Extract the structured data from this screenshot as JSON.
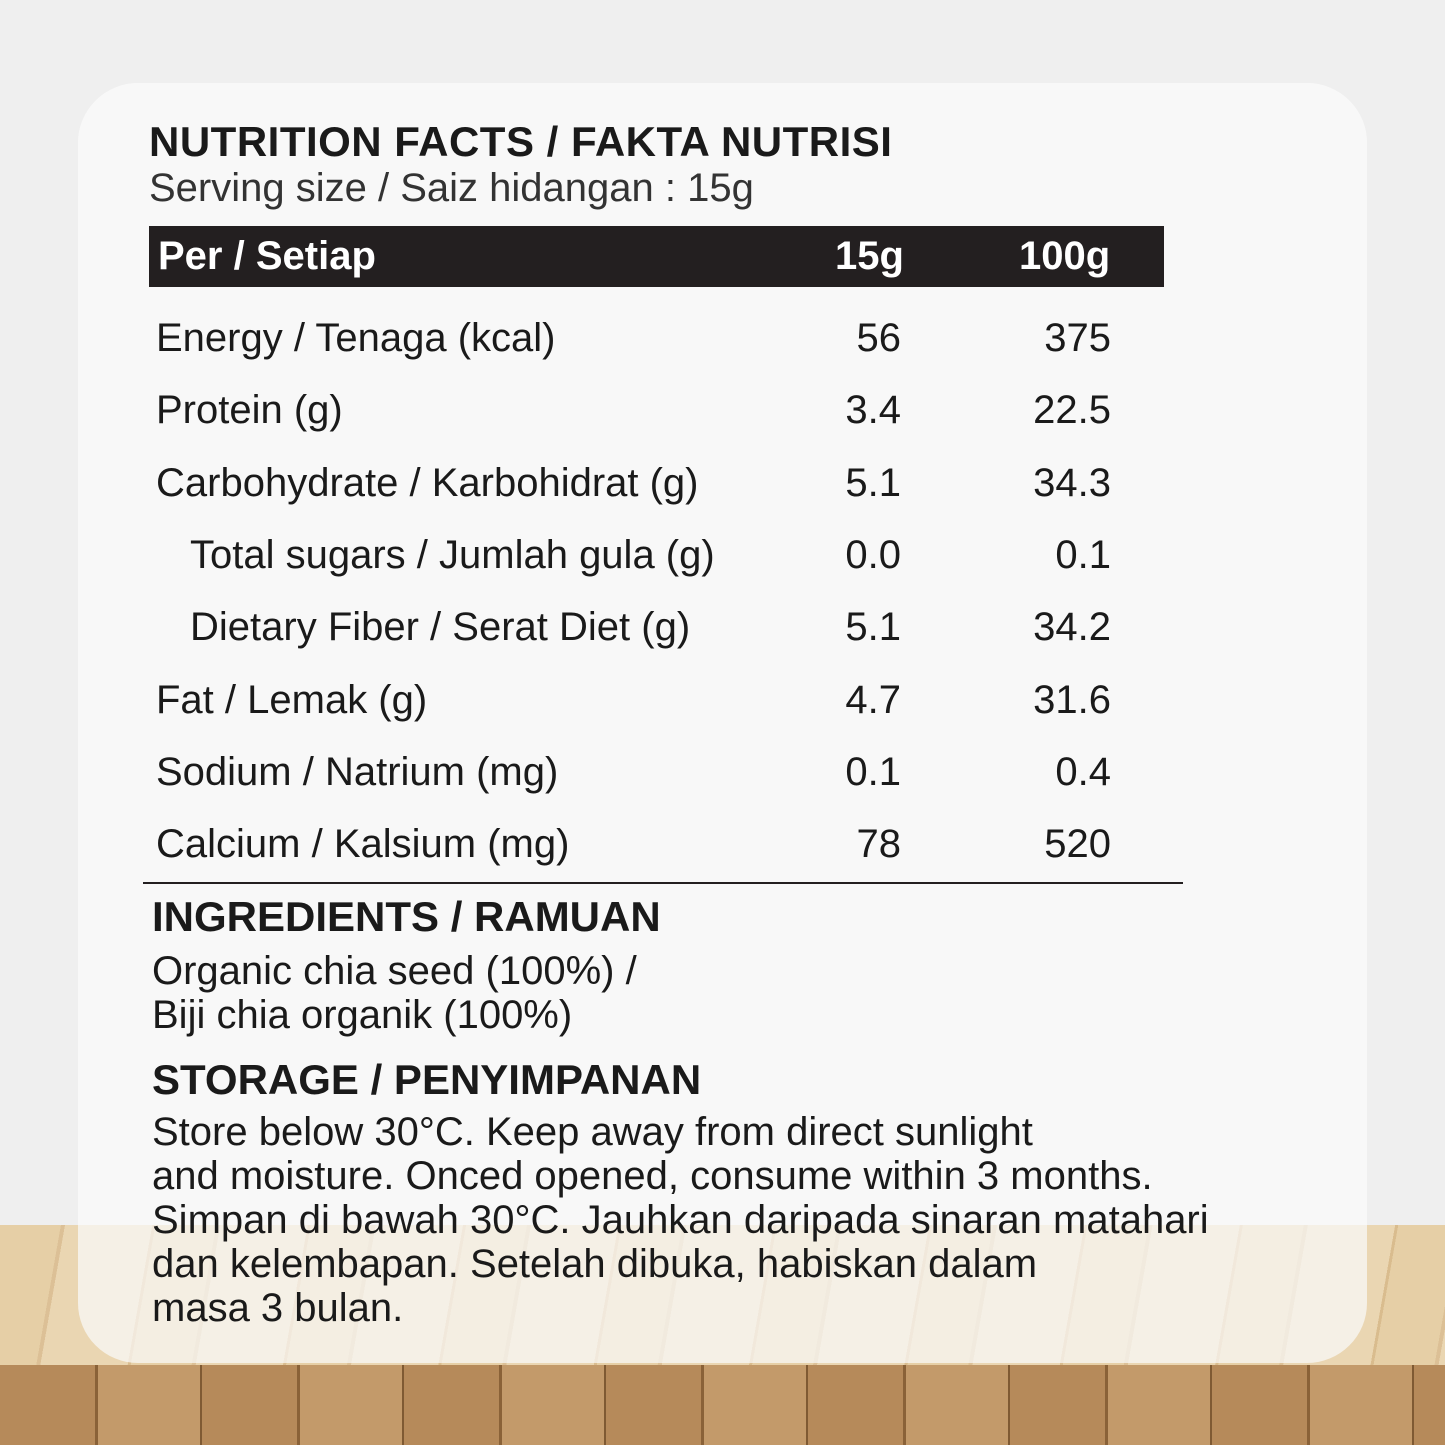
{
  "title": "NUTRITION FACTS / FAKTA NUTRISI",
  "serving": "Serving size / Saiz hidangan : 15g",
  "header": {
    "label": "Per / Setiap",
    "col1": "15g",
    "col2": "100g"
  },
  "rows": [
    {
      "label": "Energy / Tenaga (kcal)",
      "v15": "56",
      "v100": "375"
    },
    {
      "label": "Protein (g)",
      "v15": "3.4",
      "v100": "22.5"
    },
    {
      "label": "Carbohydrate / Karbohidrat (g)",
      "v15": "5.1",
      "v100": "34.3"
    },
    {
      "label": "Total sugars / Jumlah gula (g)",
      "v15": "0.0",
      "v100": "0.1"
    },
    {
      "label": "Dietary Fiber / Serat Diet (g)",
      "v15": "5.1",
      "v100": "34.2"
    },
    {
      "label": "Fat / Lemak (g)",
      "v15": "4.7",
      "v100": "31.6"
    },
    {
      "label": "Sodium / Natrium (mg)",
      "v15": "0.1",
      "v100": "0.4"
    },
    {
      "label": "Calcium / Kalsium (mg)",
      "v15": "78",
      "v100": "520"
    }
  ],
  "ingredients": {
    "heading": "INGREDIENTS / RAMUAN",
    "text": "Organic chia seed (100%) /\nBiji chia organik  (100%)"
  },
  "storage": {
    "heading": "STORAGE / PENYIMPANAN",
    "text": "Store below 30°C. Keep away from direct sunlight\nand moisture. Onced opened, consume within 3 months.\nSimpan di bawah 30°C. Jauhkan daripada sinaran matahari\ndan kelembapan. Setelah dibuka, habiskan dalam\nmasa 3 bulan."
  }
}
